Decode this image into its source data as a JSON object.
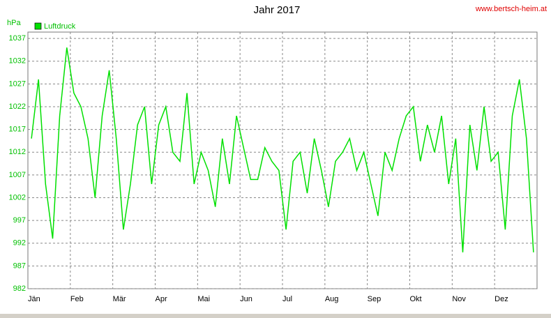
{
  "chart_data": {
    "type": "line",
    "title": "Jahr 2017",
    "source": "www.bertsch-heim.at",
    "ylabel": "hPa",
    "legend": "top-left",
    "grid": true,
    "categories": [
      "Jän",
      null,
      null,
      null,
      null,
      null,
      "Feb",
      null,
      null,
      null,
      null,
      null,
      "Mär",
      null,
      null,
      null,
      null,
      null,
      "Apr",
      null,
      null,
      null,
      null,
      null,
      "Mai",
      null,
      null,
      null,
      null,
      null,
      "Jun",
      null,
      null,
      null,
      null,
      null,
      "Jul",
      null,
      null,
      null,
      null,
      null,
      "Aug",
      null,
      null,
      null,
      null,
      null,
      "Sep",
      null,
      null,
      null,
      null,
      null,
      "Okt",
      null,
      null,
      null,
      null,
      null,
      "Nov",
      null,
      null,
      null,
      null,
      null,
      "Dez",
      null,
      null,
      null,
      null,
      null
    ],
    "series": [
      {
        "name": "Luftdruck",
        "color": "#00e000",
        "values": [
          1015,
          1028,
          1005,
          993,
          1020,
          1035,
          1025,
          1022,
          1015,
          1002,
          1020,
          1030,
          1015,
          995,
          1005,
          1018,
          1022,
          1005,
          1018,
          1022,
          1012,
          1010,
          1025,
          1005,
          1012,
          1008,
          1000,
          1015,
          1005,
          1020,
          1013,
          1006,
          1006,
          1013,
          1010,
          1008,
          995,
          1010,
          1012,
          1003,
          1015,
          1008,
          1000,
          1010,
          1012,
          1015,
          1008,
          1012,
          1005,
          998,
          1012,
          1008,
          1015,
          1020,
          1022,
          1010,
          1018,
          1012,
          1020,
          1005,
          1015,
          990,
          1018,
          1008,
          1022,
          1010,
          1012,
          995,
          1020,
          1028,
          1015,
          990
        ]
      }
    ],
    "ylim": [
      982,
      1038.4
    ],
    "yticks": [
      982,
      987,
      992,
      997,
      1002,
      1007,
      1012,
      1017,
      1022,
      1027,
      1032,
      1037
    ]
  }
}
